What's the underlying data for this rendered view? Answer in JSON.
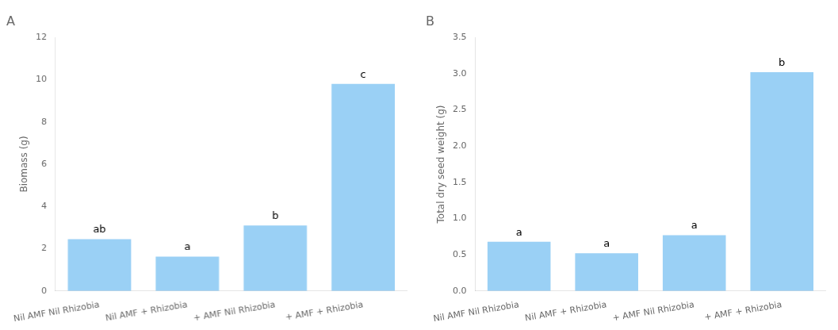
{
  "chart_data": [
    {
      "type": "bar",
      "title": "A",
      "categories": [
        "Nil AMF Nil Rhizobia",
        "Nil AMF + Rhizobia",
        "+ AMF Nil Rhizobia",
        "+ AMF + Rhizobia"
      ],
      "values": [
        2.45,
        1.62,
        3.1,
        9.8
      ],
      "annotations": [
        "ab",
        "a",
        "b",
        "c"
      ],
      "ylabel": "Biomass (g)",
      "ylim": [
        0,
        12
      ],
      "yticks": [
        0,
        2,
        4,
        6,
        8,
        10,
        12
      ],
      "grid": false
    },
    {
      "type": "bar",
      "title": "B",
      "categories": [
        "Nil AMF Nil Rhizobia",
        "Nil AMF + Rhizobia",
        "+ AMF Nil Rhizobia",
        "+ AMF + Rhizobia"
      ],
      "values": [
        0.68,
        0.52,
        0.77,
        3.02
      ],
      "annotations": [
        "a",
        "a",
        "a",
        "b"
      ],
      "ylabel": "Total dry seed weight (g)",
      "ylim": [
        0,
        3.5
      ],
      "yticks": [
        {
          "value": 0,
          "label": "0.0"
        },
        0.5,
        {
          "value": 1,
          "label": "1.0"
        },
        1.5,
        {
          "value": 2,
          "label": "2.0"
        },
        2.5,
        {
          "value": 3,
          "label": "3.0"
        },
        3.5
      ],
      "grid": false
    }
  ]
}
